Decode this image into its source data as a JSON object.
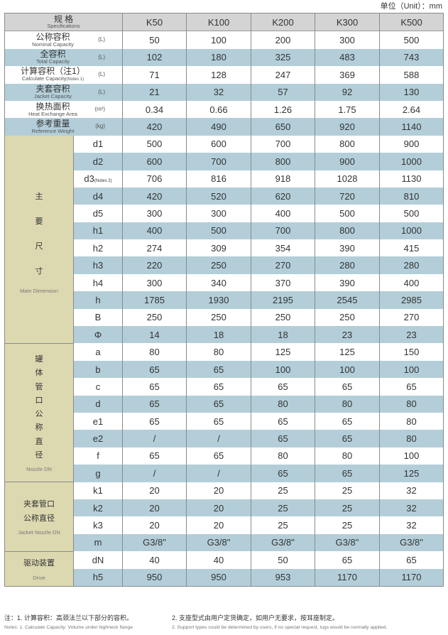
{
  "unit": "单位（Unit）：mm",
  "header": {
    "cn": "规 格",
    "en": "Specifications",
    "models": [
      "K50",
      "K100",
      "K200",
      "K300",
      "K500"
    ]
  },
  "specs": [
    {
      "cn": "公称容积",
      "en": "Nominal Capacity",
      "unit": "(L)",
      "values": [
        "50",
        "100",
        "200",
        "300",
        "500"
      ]
    },
    {
      "cn": "全容积",
      "en": "Total Capacity",
      "unit": "(L)",
      "values": [
        "102",
        "180",
        "325",
        "483",
        "743"
      ]
    },
    {
      "cn": "计算容积（注1）",
      "en": "Calculate Capacity",
      "en_sub": "(Notes 1)",
      "unit": "(L)",
      "values": [
        "71",
        "128",
        "247",
        "369",
        "588"
      ]
    },
    {
      "cn": "夹套容积",
      "en": "Jacket Capacity",
      "unit": "(L)",
      "values": [
        "21",
        "32",
        "57",
        "92",
        "130"
      ]
    },
    {
      "cn": "换热面积",
      "en": "Heat Exchange Area",
      "unit": "(m²)",
      "values": [
        "0.34",
        "0.66",
        "1.26",
        "1.75",
        "2.64"
      ]
    },
    {
      "cn": "参考重量",
      "en": "Reference Weight",
      "unit": "(kg)",
      "values": [
        "420",
        "490",
        "650",
        "920",
        "1140"
      ]
    }
  ],
  "groups": [
    {
      "cn": [
        "主",
        "要",
        "尺",
        "寸"
      ],
      "spaced": true,
      "en": "Main Dimension",
      "rows": [
        {
          "p": "d1",
          "v": [
            "500",
            "600",
            "700",
            "800",
            "900"
          ]
        },
        {
          "p": "d2",
          "v": [
            "600",
            "700",
            "800",
            "900",
            "1000"
          ]
        },
        {
          "p": "d3",
          "sub": "(Notes 2)",
          "v": [
            "706",
            "816",
            "918",
            "1028",
            "1130"
          ]
        },
        {
          "p": "d4",
          "v": [
            "420",
            "520",
            "620",
            "720",
            "810"
          ]
        },
        {
          "p": "d5",
          "v": [
            "300",
            "300",
            "400",
            "500",
            "500"
          ]
        },
        {
          "p": "h1",
          "v": [
            "400",
            "500",
            "700",
            "800",
            "1000"
          ]
        },
        {
          "p": "h2",
          "v": [
            "274",
            "309",
            "354",
            "390",
            "415"
          ]
        },
        {
          "p": "h3",
          "v": [
            "220",
            "250",
            "270",
            "280",
            "280"
          ]
        },
        {
          "p": "h4",
          "v": [
            "300",
            "340",
            "370",
            "390",
            "400"
          ]
        },
        {
          "p": "h",
          "v": [
            "1785",
            "1930",
            "2195",
            "2545",
            "2985"
          ]
        },
        {
          "p": "B",
          "v": [
            "250",
            "250",
            "250",
            "250",
            "270"
          ]
        },
        {
          "p": "Φ",
          "v": [
            "14",
            "18",
            "18",
            "23",
            "23"
          ]
        }
      ]
    },
    {
      "cn": [
        "罐",
        "体",
        "管",
        "口",
        "公",
        "称",
        "直",
        "径"
      ],
      "en": "Nozzle DN",
      "rows": [
        {
          "p": "a",
          "v": [
            "80",
            "80",
            "125",
            "125",
            "150"
          ]
        },
        {
          "p": "b",
          "v": [
            "65",
            "65",
            "100",
            "100",
            "100"
          ]
        },
        {
          "p": "c",
          "v": [
            "65",
            "65",
            "65",
            "65",
            "65"
          ]
        },
        {
          "p": "d",
          "v": [
            "65",
            "65",
            "80",
            "80",
            "80"
          ]
        },
        {
          "p": "e1",
          "v": [
            "65",
            "65",
            "65",
            "65",
            "80"
          ]
        },
        {
          "p": "e2",
          "v": [
            "/",
            "/",
            "65",
            "65",
            "80"
          ]
        },
        {
          "p": "f",
          "v": [
            "65",
            "65",
            "80",
            "80",
            "100"
          ]
        },
        {
          "p": "g",
          "v": [
            "/",
            "/",
            "65",
            "65",
            "125"
          ]
        }
      ]
    },
    {
      "cn": [
        "夹套管口",
        "公称直径"
      ],
      "en": "Jacket Nozzle DN",
      "rows": [
        {
          "p": "k1",
          "v": [
            "20",
            "20",
            "25",
            "25",
            "32"
          ]
        },
        {
          "p": "k2",
          "v": [
            "20",
            "20",
            "25",
            "25",
            "32"
          ]
        },
        {
          "p": "k3",
          "v": [
            "20",
            "20",
            "25",
            "25",
            "32"
          ]
        },
        {
          "p": "m",
          "v": [
            "G3/8\"",
            "G3/8\"",
            "G3/8\"",
            "G3/8\"",
            "G3/8\""
          ]
        }
      ]
    },
    {
      "cn": [
        "驱动装置"
      ],
      "en": "Drive",
      "rows": [
        {
          "p": "dN",
          "v": [
            "40",
            "40",
            "50",
            "65",
            "65"
          ]
        },
        {
          "p": "h5",
          "v": [
            "950",
            "950",
            "953",
            "1170",
            "1170"
          ]
        }
      ]
    }
  ],
  "notes": {
    "n1_cn": "注：1. 计算容积：高颈法兰以下部分的容积。",
    "n1_en": "Notes:  1. Calculate Capacity: Volume under highneck flange",
    "n2_cn": "2. 支座型式由用户定货确定，如用户无要求，按耳座制定。",
    "n2_en": "2. Support types could be determined by users, if no special request, lugs would be normally applied."
  },
  "colors": {
    "header": "#d4d4d4",
    "stripe": "#b3ced9",
    "group": "#dcd9b1"
  }
}
